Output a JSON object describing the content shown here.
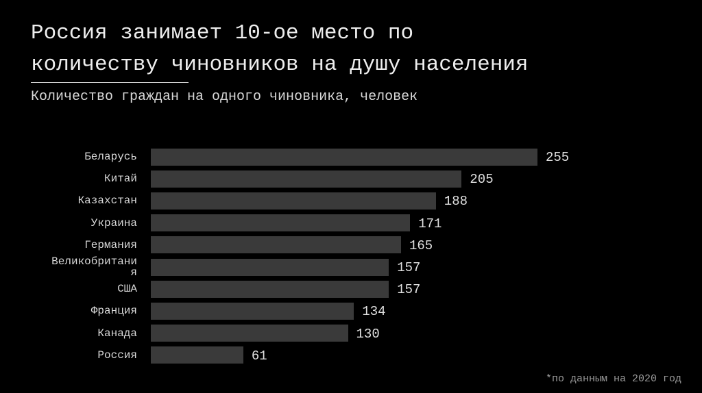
{
  "chart_data": {
    "type": "bar",
    "orientation": "horizontal",
    "title": "Россия занимает 10-ое место по количеству чиновников на душу населения",
    "subtitle": "Количество граждан на одного чиновника, человек",
    "footnote": "*по данным на 2020 год",
    "categories": [
      "Беларусь",
      "Китай",
      "Казахстан",
      "Украина",
      "Германия",
      "Великобритания",
      "США",
      "Франция",
      "Канада",
      "Россия"
    ],
    "values": [
      255,
      205,
      188,
      171,
      165,
      157,
      157,
      134,
      130,
      61
    ],
    "color": "#3a3a3a"
  }
}
